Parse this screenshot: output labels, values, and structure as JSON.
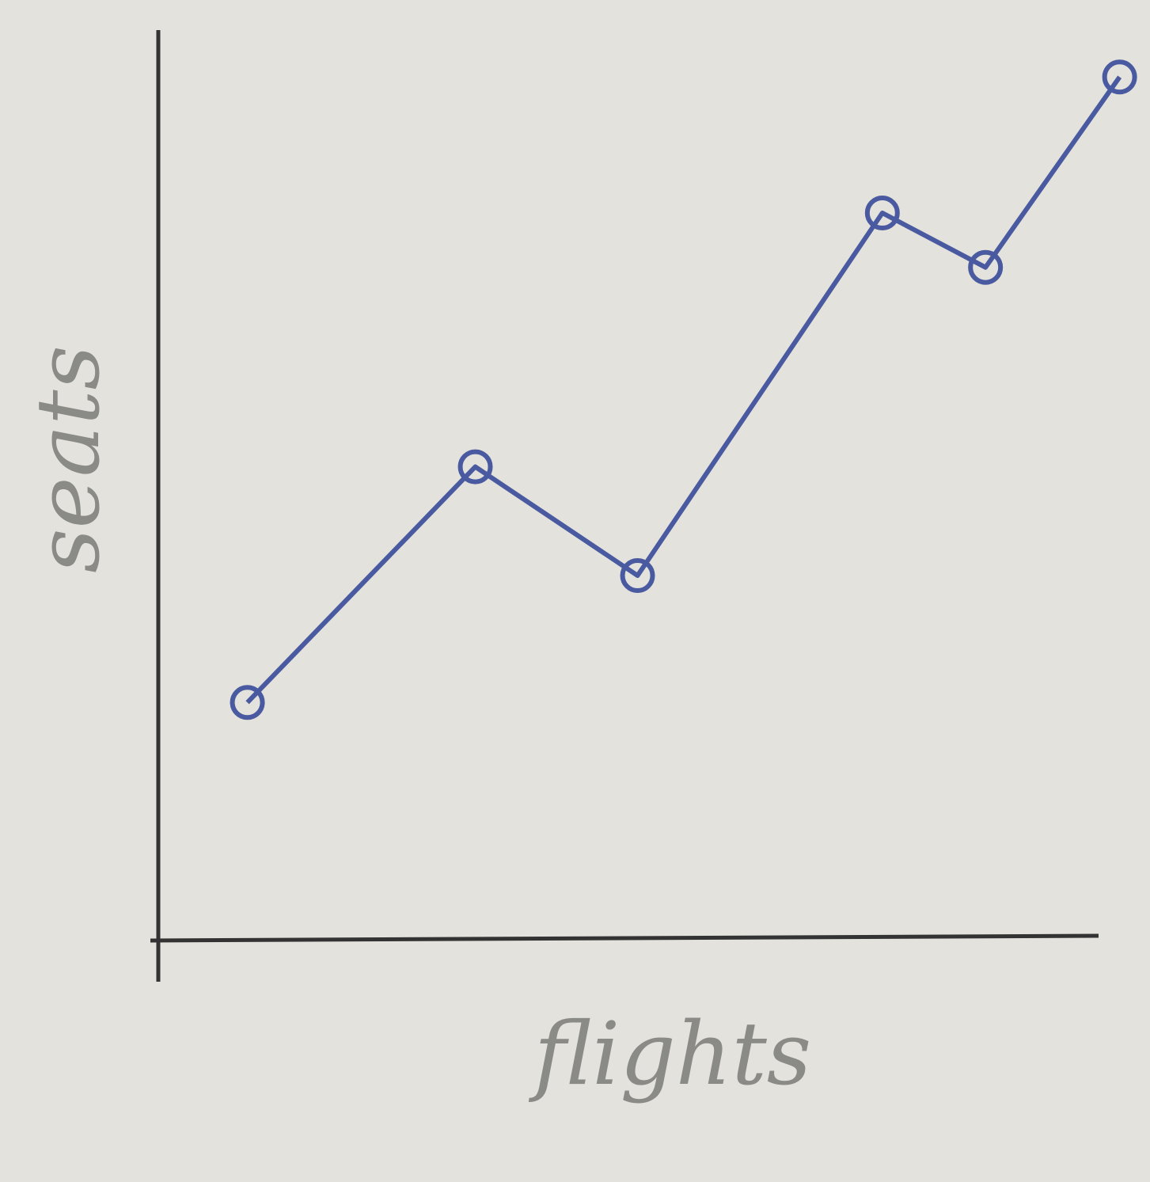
{
  "chart_data": {
    "type": "line",
    "x_label": "flights",
    "y_label": "seats",
    "x": [
      9.5,
      33.8,
      51.1,
      77.2,
      88.2,
      102.5
    ],
    "series": [
      {
        "color": "#4a5aa0",
        "values": [
          26,
          52,
          40,
          80,
          74,
          95
        ]
      }
    ],
    "xlim": [
      0,
      100
    ],
    "ylim": [
      0,
      100
    ]
  }
}
